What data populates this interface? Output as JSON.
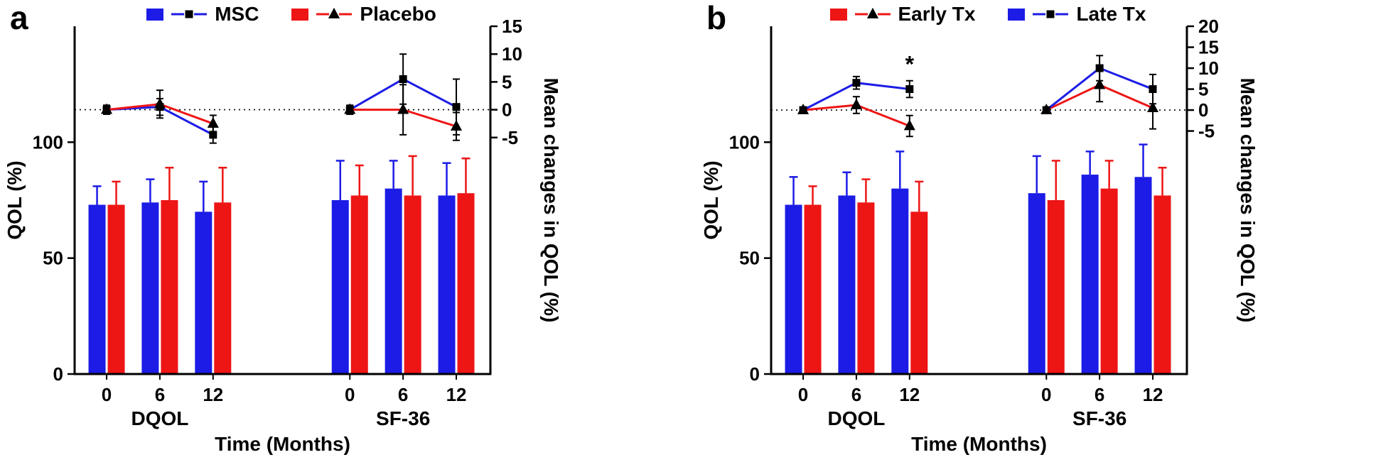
{
  "chart_data": [
    {
      "type": "bar",
      "overlay_type": "line",
      "panel_label": "a",
      "xlabel": "Time (Months)",
      "ylabel_left": "QOL (%)",
      "ylabel_right": "Mean changes in QOL (%)",
      "left_ylim": [
        0,
        150
      ],
      "left_ticks": [
        0,
        50,
        100
      ],
      "right_ylim": [
        -47.5,
        15
      ],
      "right_ticks": [
        -5,
        0,
        5,
        10,
        15
      ],
      "groups": [
        "DQOL",
        "SF-36"
      ],
      "timepoints": [
        "0",
        "6",
        "12"
      ],
      "series": [
        {
          "name": "MSC",
          "color": "#1c1ce6",
          "marker": "square",
          "bar_slot": 0,
          "bars": [
            [
              73,
              74,
              70
            ],
            [
              75,
              80,
              77
            ]
          ],
          "bar_err": [
            [
              8,
              10,
              13
            ],
            [
              17,
              12,
              14
            ]
          ],
          "line": [
            [
              0,
              0.5,
              -4.5
            ],
            [
              0,
              5.5,
              0.5
            ]
          ],
          "line_err": [
            [
              0.8,
              1.5,
              1.5
            ],
            [
              0.8,
              4.5,
              5
            ]
          ]
        },
        {
          "name": "Placebo",
          "color": "#ee1515",
          "marker": "triangle",
          "bar_slot": 1,
          "bars": [
            [
              73,
              75,
              74
            ],
            [
              77,
              77,
              78
            ]
          ],
          "bar_err": [
            [
              10,
              14,
              15
            ],
            [
              13,
              17,
              15
            ]
          ],
          "line": [
            [
              0,
              1,
              -2.5
            ],
            [
              0,
              0,
              -3
            ]
          ],
          "line_err": [
            [
              0.8,
              2.5,
              1.5
            ],
            [
              0.8,
              4.5,
              2.5
            ]
          ]
        }
      ],
      "annotations": []
    },
    {
      "type": "bar",
      "overlay_type": "line",
      "panel_label": "b",
      "xlabel": "Time (Months)",
      "ylabel_left": "QOL (%)",
      "ylabel_right": "Mean changes in QOL (%)",
      "left_ylim": [
        0,
        150
      ],
      "left_ticks": [
        0,
        50,
        100
      ],
      "right_ylim": [
        -63,
        20
      ],
      "right_ticks": [
        -5,
        0,
        5,
        10,
        15,
        20
      ],
      "groups": [
        "DQOL",
        "SF-36"
      ],
      "timepoints": [
        "0",
        "6",
        "12"
      ],
      "series": [
        {
          "name": "Early Tx",
          "color": "#ee1515",
          "marker": "triangle",
          "bar_slot": 1,
          "bars": [
            [
              73,
              74,
              70
            ],
            [
              75,
              80,
              77
            ]
          ],
          "bar_err": [
            [
              8,
              10,
              13
            ],
            [
              17,
              12,
              12
            ]
          ],
          "line": [
            [
              0,
              1.2,
              -3.8
            ],
            [
              0,
              6,
              0.5
            ]
          ],
          "line_err": [
            [
              0.5,
              2,
              2.5
            ],
            [
              0.5,
              4,
              5
            ]
          ]
        },
        {
          "name": "Late Tx",
          "color": "#1c1ce6",
          "marker": "square",
          "bar_slot": 0,
          "bars": [
            [
              73,
              77,
              80
            ],
            [
              78,
              86,
              85
            ]
          ],
          "bar_err": [
            [
              12,
              10,
              16
            ],
            [
              16,
              10,
              14
            ]
          ],
          "line": [
            [
              0,
              6.5,
              5
            ],
            [
              0,
              10,
              5
            ]
          ],
          "line_err": [
            [
              0.5,
              1.5,
              2
            ],
            [
              0.5,
              3,
              3.5
            ]
          ]
        }
      ],
      "annotations": [
        {
          "text": "*",
          "series": "Late Tx",
          "group_index": 0,
          "timepoint_index": 2
        }
      ]
    }
  ]
}
